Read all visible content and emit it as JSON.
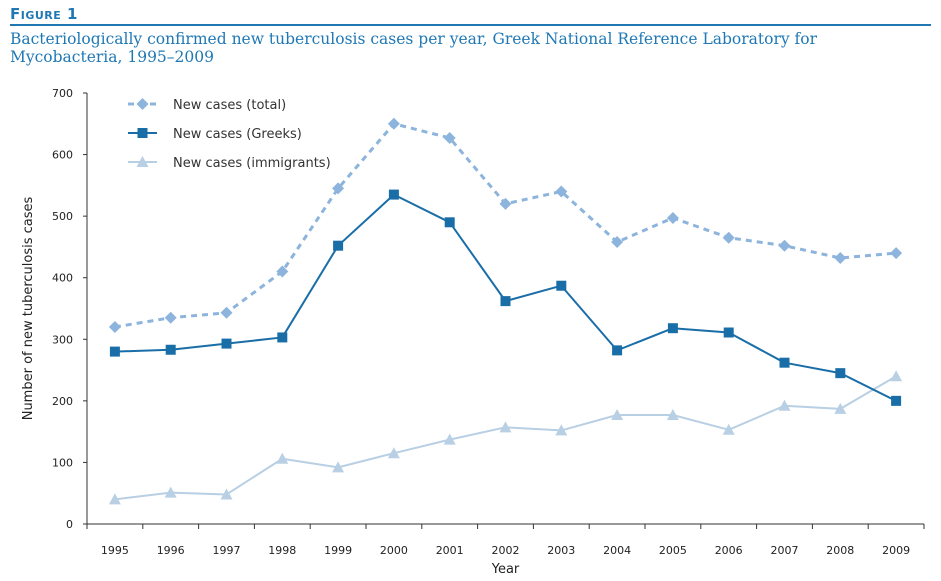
{
  "figure_label": "Figure 1",
  "chart_data": {
    "type": "line",
    "title": "Bacteriologically confirmed new tuberculosis cases per year, Greek National Reference Laboratory for Mycobacteria, 1995–2009",
    "xlabel": "Year",
    "ylabel": "Number of new tuberculosis cases",
    "categories": [
      "1995",
      "1996",
      "1997",
      "1998",
      "1999",
      "2000",
      "2001",
      "2002",
      "2003",
      "2004",
      "2005",
      "2006",
      "2007",
      "2008",
      "2009"
    ],
    "ylim": [
      0,
      700
    ],
    "yticks": [
      0,
      100,
      200,
      300,
      400,
      500,
      600,
      700
    ],
    "grid": false,
    "legend_position": "top-left",
    "series": [
      {
        "name": "New cases (total)",
        "marker": "diamond",
        "line": "dotted",
        "color": "#8db4dc",
        "values": [
          320,
          335,
          343,
          410,
          545,
          650,
          627,
          520,
          540,
          458,
          497,
          465,
          452,
          432,
          440
        ]
      },
      {
        "name": "New cases (Greeks)",
        "marker": "square",
        "line": "solid",
        "color": "#1a6ea8",
        "values": [
          280,
          283,
          293,
          303,
          452,
          535,
          490,
          362,
          387,
          282,
          318,
          311,
          262,
          245,
          200
        ]
      },
      {
        "name": "New cases (immigrants)",
        "marker": "triangle",
        "line": "solid",
        "color": "#b8cfe4",
        "values": [
          40,
          51,
          48,
          106,
          92,
          115,
          137,
          157,
          152,
          177,
          177,
          153,
          192,
          187,
          240
        ]
      }
    ]
  }
}
